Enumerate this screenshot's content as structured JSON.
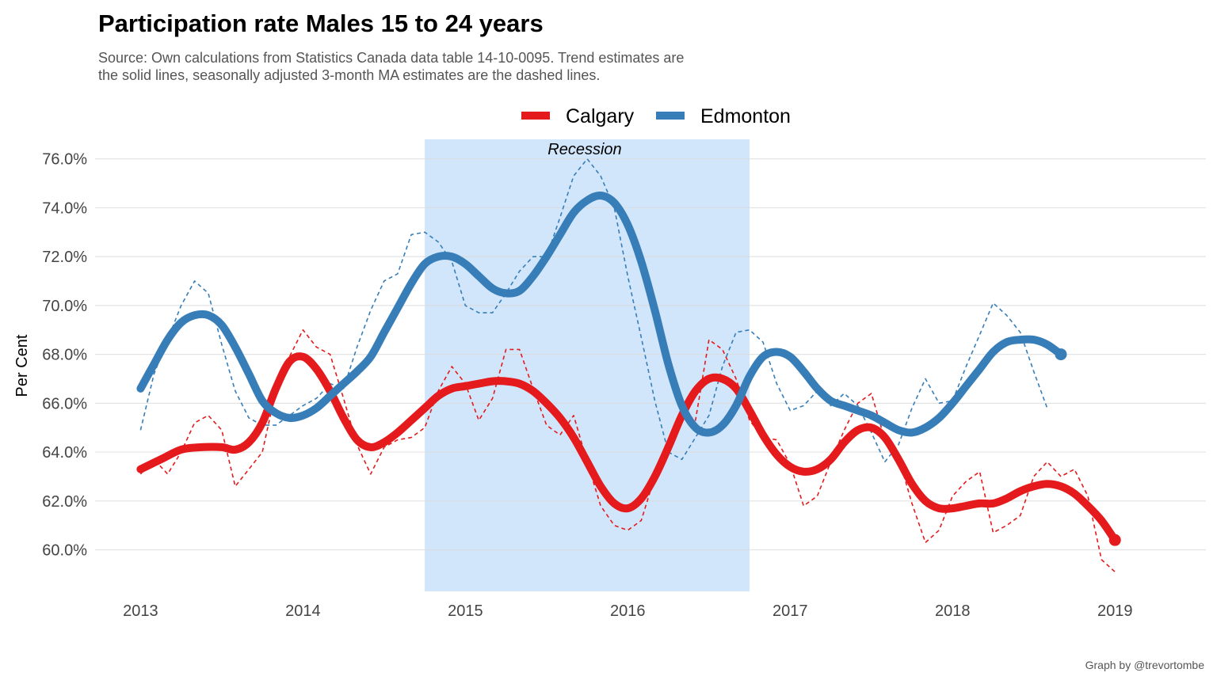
{
  "chart_data": {
    "type": "line",
    "title": "Participation rate Males 15 to 24 years",
    "subtitle_lines": [
      "Source: Own calculations from Statistics Canada data table 14-10-0095. Trend estimates are",
      "the solid lines, seasonally adjusted 3-month MA estimates are the dashed lines."
    ],
    "ylabel": "Per Cent",
    "xlabel": "",
    "caption": "Graph by @trevortombe",
    "x_ticks": [
      "2013",
      "2014",
      "2015",
      "2016",
      "2017",
      "2018",
      "2019"
    ],
    "y_ticks": [
      "60.0%",
      "62.0%",
      "64.0%",
      "66.0%",
      "68.0%",
      "70.0%",
      "72.0%",
      "74.0%",
      "76.0%"
    ],
    "ylim": [
      58.3,
      76.8
    ],
    "xlim": [
      2012.72,
      2019.56
    ],
    "grid": true,
    "legend_position": "top",
    "annotation": {
      "label": "Recession",
      "x_start": 2014.75,
      "x_end": 2016.75
    },
    "colors": {
      "Calgary": "#E41A1C",
      "Edmonton": "#377EB8",
      "recession_band": "#D2E6FB"
    },
    "series": [
      {
        "name": "Calgary",
        "trend": [
          [
            2013.0,
            63.3
          ],
          [
            2013.125,
            63.7
          ],
          [
            2013.25,
            64.1
          ],
          [
            2013.375,
            64.2
          ],
          [
            2013.5,
            64.2
          ],
          [
            2013.583,
            64.1
          ],
          [
            2013.667,
            64.4
          ],
          [
            2013.75,
            65.2
          ],
          [
            2013.833,
            66.6
          ],
          [
            2013.917,
            67.7
          ],
          [
            2014.0,
            67.9
          ],
          [
            2014.083,
            67.4
          ],
          [
            2014.167,
            66.5
          ],
          [
            2014.25,
            65.4
          ],
          [
            2014.333,
            64.5
          ],
          [
            2014.417,
            64.2
          ],
          [
            2014.5,
            64.4
          ],
          [
            2014.583,
            64.8
          ],
          [
            2014.667,
            65.3
          ],
          [
            2014.75,
            65.8
          ],
          [
            2014.833,
            66.3
          ],
          [
            2014.917,
            66.6
          ],
          [
            2015.0,
            66.7
          ],
          [
            2015.083,
            66.8
          ],
          [
            2015.167,
            66.9
          ],
          [
            2015.25,
            66.9
          ],
          [
            2015.333,
            66.8
          ],
          [
            2015.417,
            66.5
          ],
          [
            2015.5,
            66.0
          ],
          [
            2015.583,
            65.4
          ],
          [
            2015.667,
            64.6
          ],
          [
            2015.75,
            63.6
          ],
          [
            2015.833,
            62.6
          ],
          [
            2015.917,
            61.9
          ],
          [
            2016.0,
            61.7
          ],
          [
            2016.083,
            62.1
          ],
          [
            2016.167,
            63.0
          ],
          [
            2016.25,
            64.2
          ],
          [
            2016.333,
            65.5
          ],
          [
            2016.417,
            66.5
          ],
          [
            2016.5,
            67.0
          ],
          [
            2016.583,
            67.0
          ],
          [
            2016.667,
            66.6
          ],
          [
            2016.75,
            65.7
          ],
          [
            2016.833,
            64.7
          ],
          [
            2016.917,
            63.9
          ],
          [
            2017.0,
            63.4
          ],
          [
            2017.083,
            63.2
          ],
          [
            2017.167,
            63.3
          ],
          [
            2017.25,
            63.7
          ],
          [
            2017.333,
            64.4
          ],
          [
            2017.417,
            64.9
          ],
          [
            2017.5,
            65.0
          ],
          [
            2017.583,
            64.6
          ],
          [
            2017.667,
            63.7
          ],
          [
            2017.75,
            62.7
          ],
          [
            2017.833,
            62.0
          ],
          [
            2017.917,
            61.7
          ],
          [
            2018.0,
            61.7
          ],
          [
            2018.083,
            61.8
          ],
          [
            2018.167,
            61.9
          ],
          [
            2018.25,
            61.9
          ],
          [
            2018.333,
            62.1
          ],
          [
            2018.417,
            62.4
          ],
          [
            2018.5,
            62.6
          ],
          [
            2018.583,
            62.7
          ],
          [
            2018.667,
            62.6
          ],
          [
            2018.75,
            62.3
          ],
          [
            2018.833,
            61.8
          ],
          [
            2018.917,
            61.2
          ],
          [
            2019.0,
            60.4
          ]
        ],
        "sa_3mma": [
          [
            2013.0,
            63.1
          ],
          [
            2013.083,
            63.7
          ],
          [
            2013.167,
            63.1
          ],
          [
            2013.25,
            64.0
          ],
          [
            2013.333,
            65.2
          ],
          [
            2013.417,
            65.5
          ],
          [
            2013.5,
            64.9
          ],
          [
            2013.583,
            62.6
          ],
          [
            2013.667,
            63.3
          ],
          [
            2013.75,
            64.0
          ],
          [
            2013.833,
            66.5
          ],
          [
            2013.917,
            67.9
          ],
          [
            2014.0,
            69.0
          ],
          [
            2014.083,
            68.3
          ],
          [
            2014.167,
            68.0
          ],
          [
            2014.25,
            66.2
          ],
          [
            2014.333,
            64.3
          ],
          [
            2014.417,
            63.1
          ],
          [
            2014.5,
            64.2
          ],
          [
            2014.583,
            64.5
          ],
          [
            2014.667,
            64.6
          ],
          [
            2014.75,
            65.0
          ],
          [
            2014.833,
            66.5
          ],
          [
            2014.917,
            67.5
          ],
          [
            2015.0,
            66.8
          ],
          [
            2015.083,
            65.3
          ],
          [
            2015.167,
            66.2
          ],
          [
            2015.25,
            68.2
          ],
          [
            2015.333,
            68.2
          ],
          [
            2015.417,
            66.6
          ],
          [
            2015.5,
            65.1
          ],
          [
            2015.583,
            64.7
          ],
          [
            2015.667,
            65.5
          ],
          [
            2015.75,
            63.6
          ],
          [
            2015.833,
            61.8
          ],
          [
            2015.917,
            61.0
          ],
          [
            2016.0,
            60.8
          ],
          [
            2016.083,
            61.2
          ],
          [
            2016.167,
            63.0
          ],
          [
            2016.25,
            64.2
          ],
          [
            2016.333,
            65.7
          ],
          [
            2016.417,
            65.3
          ],
          [
            2016.5,
            68.6
          ],
          [
            2016.583,
            68.2
          ],
          [
            2016.667,
            67.0
          ],
          [
            2016.75,
            65.3
          ],
          [
            2016.833,
            64.6
          ],
          [
            2016.917,
            64.5
          ],
          [
            2017.0,
            63.5
          ],
          [
            2017.083,
            61.8
          ],
          [
            2017.167,
            62.2
          ],
          [
            2017.25,
            63.6
          ],
          [
            2017.333,
            64.9
          ],
          [
            2017.417,
            66.0
          ],
          [
            2017.5,
            66.4
          ],
          [
            2017.583,
            64.5
          ],
          [
            2017.667,
            63.8
          ],
          [
            2017.75,
            61.9
          ],
          [
            2017.833,
            60.3
          ],
          [
            2017.917,
            60.8
          ],
          [
            2018.0,
            62.2
          ],
          [
            2018.083,
            62.8
          ],
          [
            2018.167,
            63.2
          ],
          [
            2018.25,
            60.7
          ],
          [
            2018.333,
            61.0
          ],
          [
            2018.417,
            61.4
          ],
          [
            2018.5,
            63.0
          ],
          [
            2018.583,
            63.6
          ],
          [
            2018.667,
            63.0
          ],
          [
            2018.75,
            63.3
          ],
          [
            2018.833,
            62.2
          ],
          [
            2018.917,
            59.6
          ],
          [
            2019.0,
            59.1
          ]
        ]
      },
      {
        "name": "Edmonton",
        "trend": [
          [
            2013.0,
            66.6
          ],
          [
            2013.083,
            67.6
          ],
          [
            2013.167,
            68.6
          ],
          [
            2013.25,
            69.3
          ],
          [
            2013.333,
            69.6
          ],
          [
            2013.417,
            69.6
          ],
          [
            2013.5,
            69.2
          ],
          [
            2013.583,
            68.3
          ],
          [
            2013.667,
            67.2
          ],
          [
            2013.75,
            66.1
          ],
          [
            2013.833,
            65.6
          ],
          [
            2013.917,
            65.4
          ],
          [
            2014.0,
            65.5
          ],
          [
            2014.083,
            65.8
          ],
          [
            2014.167,
            66.3
          ],
          [
            2014.25,
            66.8
          ],
          [
            2014.333,
            67.3
          ],
          [
            2014.417,
            67.9
          ],
          [
            2014.5,
            68.9
          ],
          [
            2014.583,
            69.9
          ],
          [
            2014.667,
            70.9
          ],
          [
            2014.75,
            71.7
          ],
          [
            2014.833,
            72.0
          ],
          [
            2014.917,
            72.0
          ],
          [
            2015.0,
            71.7
          ],
          [
            2015.083,
            71.2
          ],
          [
            2015.167,
            70.7
          ],
          [
            2015.25,
            70.5
          ],
          [
            2015.333,
            70.6
          ],
          [
            2015.417,
            71.2
          ],
          [
            2015.5,
            72.0
          ],
          [
            2015.583,
            72.9
          ],
          [
            2015.667,
            73.8
          ],
          [
            2015.75,
            74.3
          ],
          [
            2015.833,
            74.5
          ],
          [
            2015.917,
            74.2
          ],
          [
            2016.0,
            73.3
          ],
          [
            2016.083,
            71.8
          ],
          [
            2016.167,
            69.8
          ],
          [
            2016.25,
            67.6
          ],
          [
            2016.333,
            65.9
          ],
          [
            2016.417,
            65.0
          ],
          [
            2016.5,
            64.8
          ],
          [
            2016.583,
            65.1
          ],
          [
            2016.667,
            65.9
          ],
          [
            2016.75,
            67.1
          ],
          [
            2016.833,
            67.9
          ],
          [
            2016.917,
            68.1
          ],
          [
            2017.0,
            67.9
          ],
          [
            2017.083,
            67.3
          ],
          [
            2017.167,
            66.6
          ],
          [
            2017.25,
            66.1
          ],
          [
            2017.333,
            65.9
          ],
          [
            2017.417,
            65.7
          ],
          [
            2017.5,
            65.5
          ],
          [
            2017.583,
            65.2
          ],
          [
            2017.667,
            64.9
          ],
          [
            2017.75,
            64.8
          ],
          [
            2017.833,
            65.0
          ],
          [
            2017.917,
            65.4
          ],
          [
            2018.0,
            66.0
          ],
          [
            2018.083,
            66.7
          ],
          [
            2018.167,
            67.4
          ],
          [
            2018.25,
            68.1
          ],
          [
            2018.333,
            68.5
          ],
          [
            2018.417,
            68.6
          ],
          [
            2018.5,
            68.6
          ],
          [
            2018.583,
            68.4
          ],
          [
            2018.667,
            68.0
          ]
        ],
        "sa_3mma": [
          [
            2013.0,
            64.9
          ],
          [
            2013.083,
            67.2
          ],
          [
            2013.167,
            68.6
          ],
          [
            2013.25,
            70.0
          ],
          [
            2013.333,
            71.0
          ],
          [
            2013.417,
            70.5
          ],
          [
            2013.5,
            68.4
          ],
          [
            2013.583,
            66.5
          ],
          [
            2013.667,
            65.4
          ],
          [
            2013.75,
            65.1
          ],
          [
            2013.833,
            65.1
          ],
          [
            2013.917,
            65.5
          ],
          [
            2014.0,
            65.9
          ],
          [
            2014.083,
            66.2
          ],
          [
            2014.167,
            66.8
          ],
          [
            2014.25,
            66.6
          ],
          [
            2014.333,
            68.3
          ],
          [
            2014.417,
            69.8
          ],
          [
            2014.5,
            71.0
          ],
          [
            2014.583,
            71.3
          ],
          [
            2014.667,
            72.9
          ],
          [
            2014.75,
            73.0
          ],
          [
            2014.833,
            72.6
          ],
          [
            2014.917,
            71.8
          ],
          [
            2015.0,
            70.0
          ],
          [
            2015.083,
            69.7
          ],
          [
            2015.167,
            69.7
          ],
          [
            2015.25,
            70.5
          ],
          [
            2015.333,
            71.4
          ],
          [
            2015.417,
            72.0
          ],
          [
            2015.5,
            72.0
          ],
          [
            2015.583,
            73.6
          ],
          [
            2015.667,
            75.3
          ],
          [
            2015.75,
            76.0
          ],
          [
            2015.833,
            75.3
          ],
          [
            2015.917,
            74.0
          ],
          [
            2016.0,
            71.2
          ],
          [
            2016.083,
            68.7
          ],
          [
            2016.167,
            66.1
          ],
          [
            2016.25,
            64.0
          ],
          [
            2016.333,
            63.7
          ],
          [
            2016.417,
            64.6
          ],
          [
            2016.5,
            65.5
          ],
          [
            2016.583,
            67.5
          ],
          [
            2016.667,
            68.9
          ],
          [
            2016.75,
            69.0
          ],
          [
            2016.833,
            68.5
          ],
          [
            2016.917,
            66.8
          ],
          [
            2017.0,
            65.7
          ],
          [
            2017.083,
            65.9
          ],
          [
            2017.167,
            66.5
          ],
          [
            2017.25,
            65.9
          ],
          [
            2017.333,
            66.4
          ],
          [
            2017.417,
            65.9
          ],
          [
            2017.5,
            64.8
          ],
          [
            2017.583,
            63.6
          ],
          [
            2017.667,
            64.3
          ],
          [
            2017.75,
            65.8
          ],
          [
            2017.833,
            67.0
          ],
          [
            2017.917,
            66.0
          ],
          [
            2018.0,
            66.1
          ],
          [
            2018.083,
            67.5
          ],
          [
            2018.167,
            68.8
          ],
          [
            2018.25,
            70.1
          ],
          [
            2018.333,
            69.6
          ],
          [
            2018.417,
            68.9
          ],
          [
            2018.5,
            67.3
          ],
          [
            2018.583,
            65.8
          ]
        ]
      }
    ]
  }
}
